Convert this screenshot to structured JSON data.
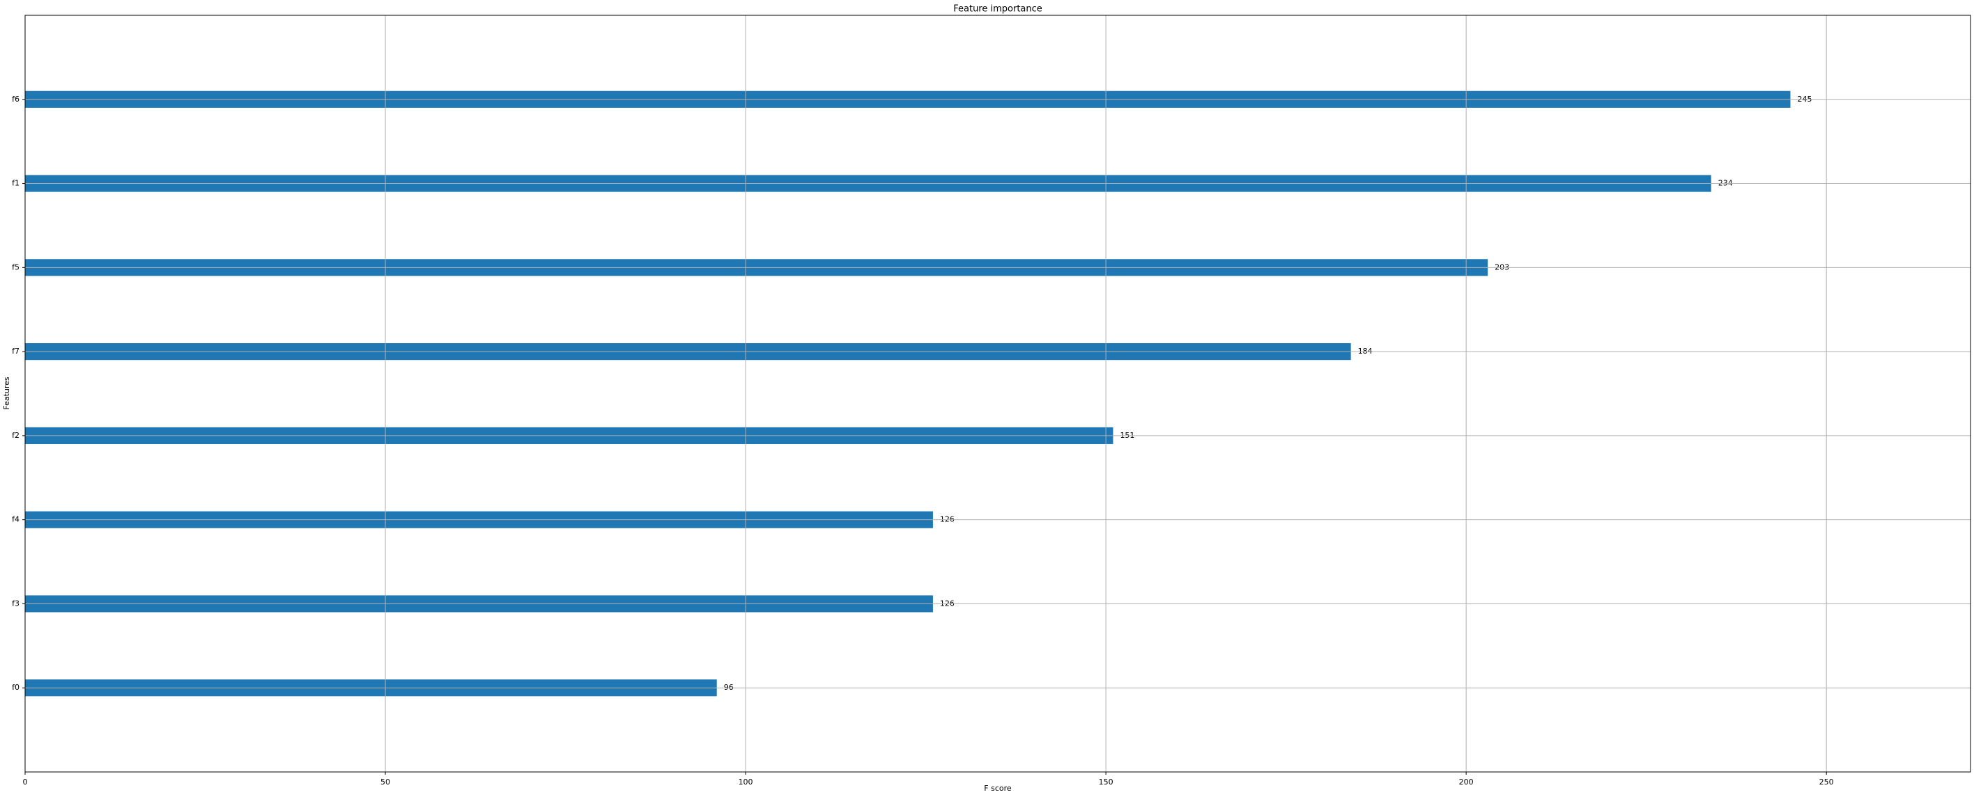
{
  "chart_data": {
    "type": "barh",
    "title": "Feature importance",
    "xlabel": "F score",
    "ylabel": "Features",
    "categories": [
      "f0",
      "f3",
      "f4",
      "f2",
      "f7",
      "f5",
      "f1",
      "f6"
    ],
    "values": [
      96,
      126,
      126,
      151,
      184,
      203,
      234,
      245
    ],
    "color": "#1f77b4",
    "xlim": [
      0,
      270
    ],
    "xticks": [
      0,
      50,
      100,
      150,
      200,
      250
    ],
    "ylim": [
      -1,
      8
    ],
    "grid": true
  }
}
